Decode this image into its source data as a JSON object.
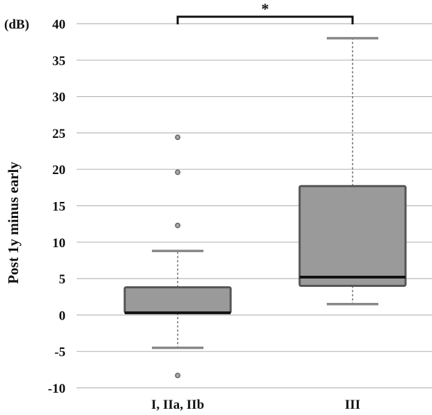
{
  "chart_data": {
    "type": "boxplot",
    "title": "",
    "xlabel": "",
    "ylabel": "Post 1y minus early",
    "y_unit": "(dB)",
    "ylim": [
      -10,
      40
    ],
    "y_ticks": [
      -10,
      -5,
      0,
      5,
      10,
      15,
      20,
      25,
      30,
      35,
      40
    ],
    "grid": true,
    "categories": [
      "I, IIa, IIb",
      "III"
    ],
    "boxes": [
      {
        "name": "I, IIa, IIb",
        "whisker_low": -4.5,
        "q1": 0.3,
        "median": 0.3,
        "q3": 3.8,
        "whisker_high": 8.8,
        "outliers": [
          -8.3,
          12.3,
          19.6,
          24.4
        ]
      },
      {
        "name": "III",
        "whisker_low": 1.5,
        "q1": 4.0,
        "median": 5.2,
        "q3": 17.7,
        "whisker_high": 38.0,
        "outliers": []
      }
    ],
    "significance": {
      "between": [
        "I, IIa, IIb",
        "III"
      ],
      "level": 40,
      "label": "*"
    }
  },
  "colors": {
    "box_fill": "#9a9a9a",
    "box_edge": "#555555",
    "median": "#111111",
    "grid": "#b8b8b8",
    "text": "#111111"
  }
}
